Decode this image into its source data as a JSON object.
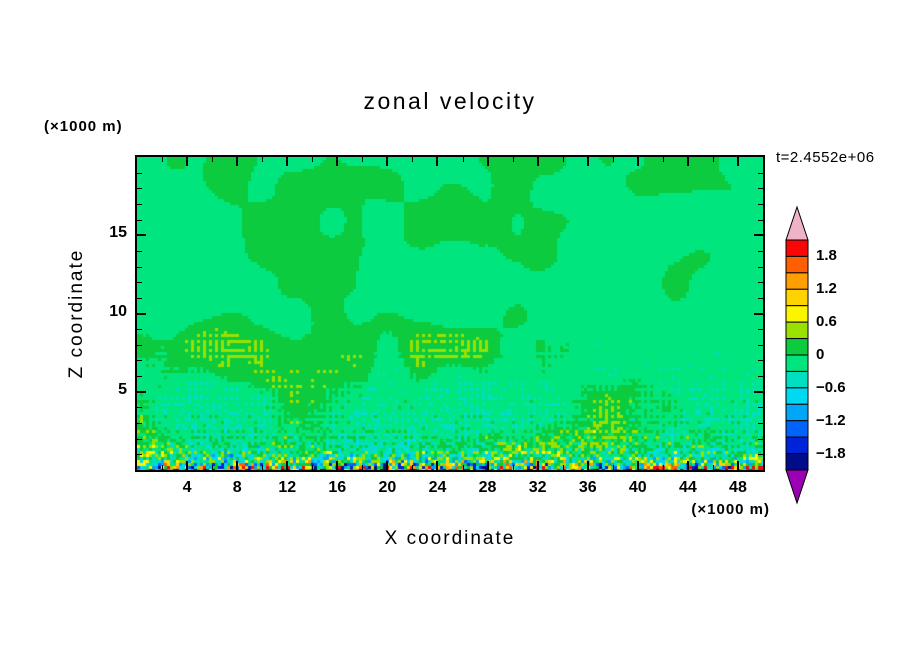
{
  "title": "zonal velocity",
  "timestamp": "t=2.4552e+06",
  "axes": {
    "x": {
      "label": "X coordinate",
      "unit": "(×1000 m)",
      "min": 0,
      "max": 50,
      "major_ticks": [
        4,
        8,
        12,
        16,
        20,
        24,
        28,
        32,
        36,
        40,
        44,
        48
      ],
      "minor_tick_step": 2
    },
    "z": {
      "label": "Z coordinate",
      "unit": "(×1000 m)",
      "min": 0,
      "max": 20,
      "major_ticks": [
        5,
        10,
        15
      ],
      "minor_tick_step": 1
    }
  },
  "colorbar": {
    "levels": [
      2.1,
      1.8,
      1.5,
      1.2,
      0.9,
      0.6,
      0.3,
      0,
      -0.3,
      -0.6,
      -0.9,
      -1.2,
      -1.5,
      -1.8,
      -2.1
    ],
    "colors": [
      "#f90606",
      "#ff5f00",
      "#ff9e00",
      "#ffd300",
      "#fbf600",
      "#9ae100",
      "#0ccb3f",
      "#00e57d",
      "#00e0c0",
      "#00d9f2",
      "#00a6f8",
      "#0064fa",
      "#0022d8",
      "#000c8a"
    ],
    "over_color": "#f0b2c6",
    "under_color": "#9b00b4",
    "labels": [
      "1.8",
      "1.2",
      "0.6",
      "0",
      "−0.6",
      "−1.2",
      "−1.8"
    ],
    "label_values": [
      1.8,
      1.2,
      0.6,
      0,
      -0.6,
      -1.2,
      -1.8
    ]
  },
  "chart_data": {
    "type": "heatmap",
    "title": "zonal velocity",
    "annotation": "t=2.4552e+06",
    "xlabel": "X coordinate",
    "ylabel": "Z coordinate",
    "x_unit": "(×1000 m)",
    "y_unit": "(×1000 m)",
    "xlim": [
      0,
      50
    ],
    "ylim": [
      0,
      20
    ],
    "x_ticks": [
      4,
      8,
      12,
      16,
      20,
      24,
      28,
      32,
      36,
      40,
      44,
      48
    ],
    "y_ticks": [
      5,
      10,
      15
    ],
    "contour_interval": 0.3,
    "levels": [
      -2.1,
      -1.8,
      -1.5,
      -1.2,
      -0.9,
      -0.6,
      -0.3,
      0,
      0.3,
      0.6,
      0.9,
      1.2,
      1.5,
      1.8,
      2.1
    ],
    "colorbar_labels": [
      1.8,
      1.2,
      0.6,
      0,
      -0.6,
      -1.2,
      -1.8
    ],
    "palette": [
      "#f90606",
      "#ff5f00",
      "#ff9e00",
      "#ffd300",
      "#fbf600",
      "#9ae100",
      "#0ccb3f",
      "#00e57d",
      "#00e0c0",
      "#00d9f2",
      "#00a6f8",
      "#0064fa",
      "#0022d8",
      "#000c8a"
    ],
    "over_color": "#f0b2c6",
    "under_color": "#9b00b4",
    "field_description": "Zonal velocity mostly near 0: spring-green background (−0.3–0) with smooth medium-green patches (0–0.3) in the upper half of the domain; fine diagonal cross-hatched wave perturbations below z≈9×1000 m; strong turbulent speckle spanning the full range (yellow/orange/red positive and cyan/blue/navy negative, up to ±1.8 and beyond) concentrated in a thin layer along the bottom boundary z≲1.5×1000 m."
  }
}
